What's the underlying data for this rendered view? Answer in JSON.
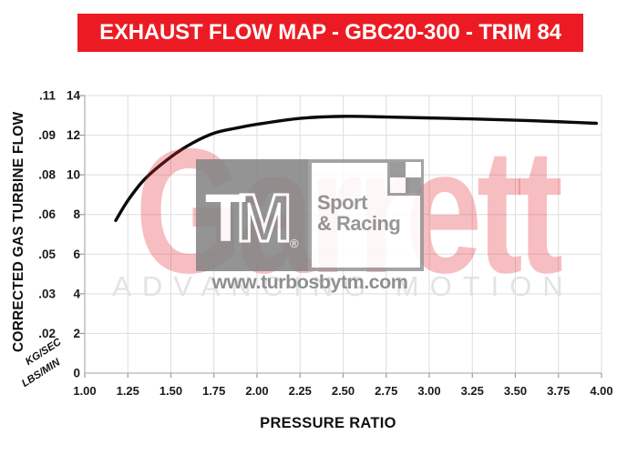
{
  "banner": {
    "title": "EXHAUST FLOW MAP  -  GBC20-300 - TRIM 84",
    "bg_color": "#EC1B23",
    "text_color": "#FFFFFF"
  },
  "axes": {
    "x_label": "PRESSURE RATIO",
    "y_label": "CORRECTED GAS TURBINE FLOW",
    "y_unit_upper": "KG/SEC",
    "y_unit_lower": "LBS/MIN"
  },
  "watermark": {
    "brand": "Garrett",
    "tagline": "ADVANCING MOTION",
    "brand_color": "#ED1C24",
    "logo_tm": "TM",
    "logo_reg": "®",
    "logo_line1": "Sport",
    "logo_line2": "& Racing",
    "url": "www.turbosbytm.com"
  },
  "chart_data": {
    "type": "line",
    "title": "EXHAUST FLOW MAP - GBC20-300 - TRIM 84",
    "xlabel": "PRESSURE RATIO",
    "ylabel": "CORRECTED GAS TURBINE FLOW",
    "x_range": [
      1.0,
      4.0
    ],
    "x_ticks": [
      1.0,
      1.25,
      1.5,
      1.75,
      2.0,
      2.25,
      2.5,
      2.75,
      3.0,
      3.25,
      3.5,
      3.75,
      4.0
    ],
    "x_tick_labels": [
      "1.00",
      "1.25",
      "1.50",
      "1.75",
      "2.00",
      "2.25",
      "2.50",
      "2.75",
      "3.00",
      "3.25",
      "3.50",
      "3.75",
      "4.00"
    ],
    "ylim_lbs_min": [
      0,
      14
    ],
    "y_ticks_lbs_min": [
      0,
      2,
      4,
      6,
      8,
      10,
      12,
      14
    ],
    "y_tick_labels_lbs_min": [
      "0",
      "2",
      "4",
      "6",
      "8",
      "10",
      "12",
      "14"
    ],
    "y_tick_labels_kg_sec": [
      "",
      ".02",
      ".03",
      ".05",
      ".06",
      ".08",
      ".09",
      ".11"
    ],
    "grid": true,
    "legend": "none",
    "series": [
      {
        "name": "corrected gas turbine flow",
        "color": "#0B0B0B",
        "x": [
          1.18,
          1.25,
          1.35,
          1.5,
          1.625,
          1.75,
          1.875,
          2.0,
          2.25,
          2.5,
          2.75,
          3.0,
          3.25,
          3.5,
          3.75,
          3.97
        ],
        "lbs_min": [
          7.7,
          8.7,
          9.8,
          10.9,
          11.6,
          12.1,
          12.35,
          12.55,
          12.85,
          12.95,
          12.92,
          12.87,
          12.82,
          12.76,
          12.68,
          12.6
        ]
      }
    ]
  }
}
